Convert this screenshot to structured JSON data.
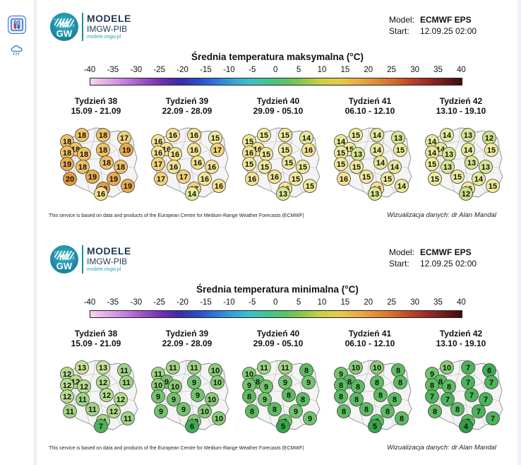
{
  "sidebar": {
    "items": [
      {
        "name": "thermometer-icon",
        "active": true
      },
      {
        "name": "rain-cloud-icon",
        "active": false
      }
    ]
  },
  "colors": {
    "colorbar": [
      "#f5d5f0",
      "#e2a8e8",
      "#c27ee0",
      "#9a52c8",
      "#7030b8",
      "#3d2ca8",
      "#2a48c8",
      "#2d74d8",
      "#36a0d8",
      "#3cc0c8",
      "#44c494",
      "#58c466",
      "#8cc84a",
      "#c8d044",
      "#e6cc4a",
      "#ecb04a",
      "#e6903a",
      "#d8702c",
      "#c0482a",
      "#9c2c26",
      "#6e1c1c",
      "#3e0e0e"
    ],
    "max_bubbles": {
      "12": "#c8e08a",
      "13": "#d8e492",
      "14": "#e6e898",
      "15": "#f0ea9c",
      "16": "#f4e292",
      "17": "#f2d27a",
      "18": "#efc264",
      "19": "#e8ac4e",
      "20": "#e29a42"
    },
    "min_bubbles": {
      "4": "#2f9e46",
      "5": "#36a64c",
      "6": "#3fad52",
      "7": "#4cb45a",
      "8": "#5cbc62",
      "9": "#72c46c",
      "10": "#88cc76",
      "11": "#a0d484",
      "12": "#b6dc8e",
      "13": "#c8e298"
    }
  },
  "panels": [
    {
      "logo": {
        "line1": "MODELE",
        "line2": "IMGW-PIB",
        "line3": "modele.imgw.pl",
        "mark_top": "IM",
        "mark_bottom": "GW"
      },
      "model_label": "Model:",
      "model_value": "ECMWF EPS",
      "start_label": "Start:",
      "start_value": "12.09.25 02:00",
      "title": "Średnia temperatura maksymalna (°C)",
      "colorbar_labels": [
        "-40",
        "-35",
        "-30",
        "-25",
        "-20",
        "-15",
        "-10",
        "-5",
        "0",
        "5",
        "10",
        "15",
        "20",
        "25",
        "30",
        "35",
        "40"
      ],
      "weeks": [
        {
          "name": "Tydzień 38",
          "dates": "15.09 - 21.09",
          "values": [
            18,
            18,
            18,
            17,
            18,
            19,
            18,
            18,
            18,
            19,
            18,
            18,
            18,
            20,
            19,
            19,
            20,
            19,
            16
          ]
        },
        {
          "name": "Tydzień 39",
          "dates": "22.09 - 28.09",
          "values": [
            16,
            16,
            16,
            15,
            16,
            17,
            16,
            16,
            16,
            17,
            16,
            16,
            16,
            17,
            17,
            16,
            17,
            16,
            14
          ]
        },
        {
          "name": "Tydzień 40",
          "dates": "29.09 - 05.10",
          "values": [
            15,
            15,
            15,
            14,
            16,
            16,
            16,
            15,
            15,
            15,
            15,
            15,
            15,
            16,
            16,
            15,
            16,
            15,
            13
          ]
        },
        {
          "name": "Tydzień 41",
          "dates": "06.10 - 12.10",
          "values": [
            14,
            15,
            14,
            13,
            15,
            15,
            15,
            13,
            14,
            15,
            15,
            14,
            14,
            16,
            15,
            15,
            16,
            14,
            13
          ]
        },
        {
          "name": "Tydzień 42",
          "dates": "13.10 - 19.10",
          "values": [
            14,
            14,
            13,
            12,
            14,
            15,
            14,
            13,
            14,
            15,
            13,
            13,
            13,
            15,
            15,
            14,
            15,
            15,
            12
          ]
        }
      ],
      "credit": "This service is based on data and products of the European Centre for Medium-Range Weather Forecasts (ECMWF)",
      "author": "Wizualizacja danych: dr Alan Mandal"
    },
    {
      "logo": {
        "line1": "MODELE",
        "line2": "IMGW-PIB",
        "line3": "modele.imgw.pl",
        "mark_top": "IM",
        "mark_bottom": "GW"
      },
      "model_label": "Model:",
      "model_value": "ECMWF EPS",
      "start_label": "Start:",
      "start_value": "12.09.25 02:00",
      "title": "Średnia temperatura minimalna (°C)",
      "colorbar_labels": [
        "-40",
        "-35",
        "-30",
        "-25",
        "-20",
        "-15",
        "-10",
        "-5",
        "0",
        "5",
        "10",
        "15",
        "20",
        "25",
        "30",
        "35",
        "40"
      ],
      "weeks": [
        {
          "name": "Tydzień 38",
          "dates": "15.09 - 21.09",
          "values": [
            12,
            13,
            13,
            11,
            12,
            11,
            12,
            12,
            12,
            12,
            11,
            12,
            12,
            11,
            11,
            12,
            11,
            11,
            7
          ]
        },
        {
          "name": "Tydzień 39",
          "dates": "22.09 - 28.09",
          "values": [
            11,
            11,
            11,
            10,
            9,
            10,
            10,
            10,
            9,
            9,
            9,
            9,
            10,
            9,
            9,
            10,
            10,
            10,
            6
          ]
        },
        {
          "name": "Tydzień 40",
          "dates": "29.09 - 05.10",
          "values": [
            10,
            11,
            11,
            8,
            8,
            9,
            9,
            9,
            9,
            8,
            9,
            8,
            8,
            8,
            8,
            9,
            9,
            9,
            5
          ]
        },
        {
          "name": "Tydzień 41",
          "dates": "06.10 - 12.10",
          "values": [
            9,
            10,
            10,
            8,
            8,
            8,
            8,
            8,
            8,
            8,
            8,
            8,
            8,
            8,
            8,
            8,
            8,
            8,
            5
          ]
        },
        {
          "name": "Tydzień 42",
          "dates": "13.10 - 19.10",
          "values": [
            9,
            10,
            7,
            6,
            8,
            7,
            8,
            8,
            7,
            7,
            7,
            7,
            7,
            8,
            8,
            7,
            8,
            7,
            4
          ]
        }
      ],
      "credit": "This service is based on data and products of the European Centre for Medium-Range Weather Forecasts (ECMWF)",
      "author": "Wizualizacja danych: dr Alan Mandal"
    }
  ]
}
